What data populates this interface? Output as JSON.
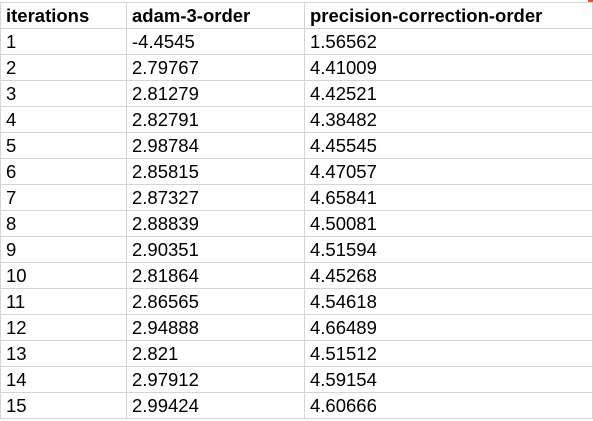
{
  "sheet": {
    "accent_color": "#e8542a",
    "columns": [
      "iterations",
      "adam-3-order",
      "precision-correction-order"
    ],
    "rows": [
      [
        "1",
        "-4.4545",
        "1.56562"
      ],
      [
        "2",
        "2.79767",
        "4.41009"
      ],
      [
        "3",
        "2.81279",
        "4.42521"
      ],
      [
        "4",
        "2.82791",
        "4.38482"
      ],
      [
        "5",
        "2.98784",
        "4.45545"
      ],
      [
        "6",
        "2.85815",
        "4.47057"
      ],
      [
        "7",
        "2.87327",
        "4.65841"
      ],
      [
        "8",
        "2.88839",
        "4.50081"
      ],
      [
        "9",
        "2.90351",
        "4.51594"
      ],
      [
        "10",
        "2.81864",
        "4.45268"
      ],
      [
        "11",
        "2.86565",
        "4.54618"
      ],
      [
        "12",
        "2.94888",
        "4.66489"
      ],
      [
        "13",
        "2.821",
        "4.51512"
      ],
      [
        "14",
        "2.97912",
        "4.59154"
      ],
      [
        "15",
        "2.99424",
        "4.60666"
      ]
    ]
  }
}
